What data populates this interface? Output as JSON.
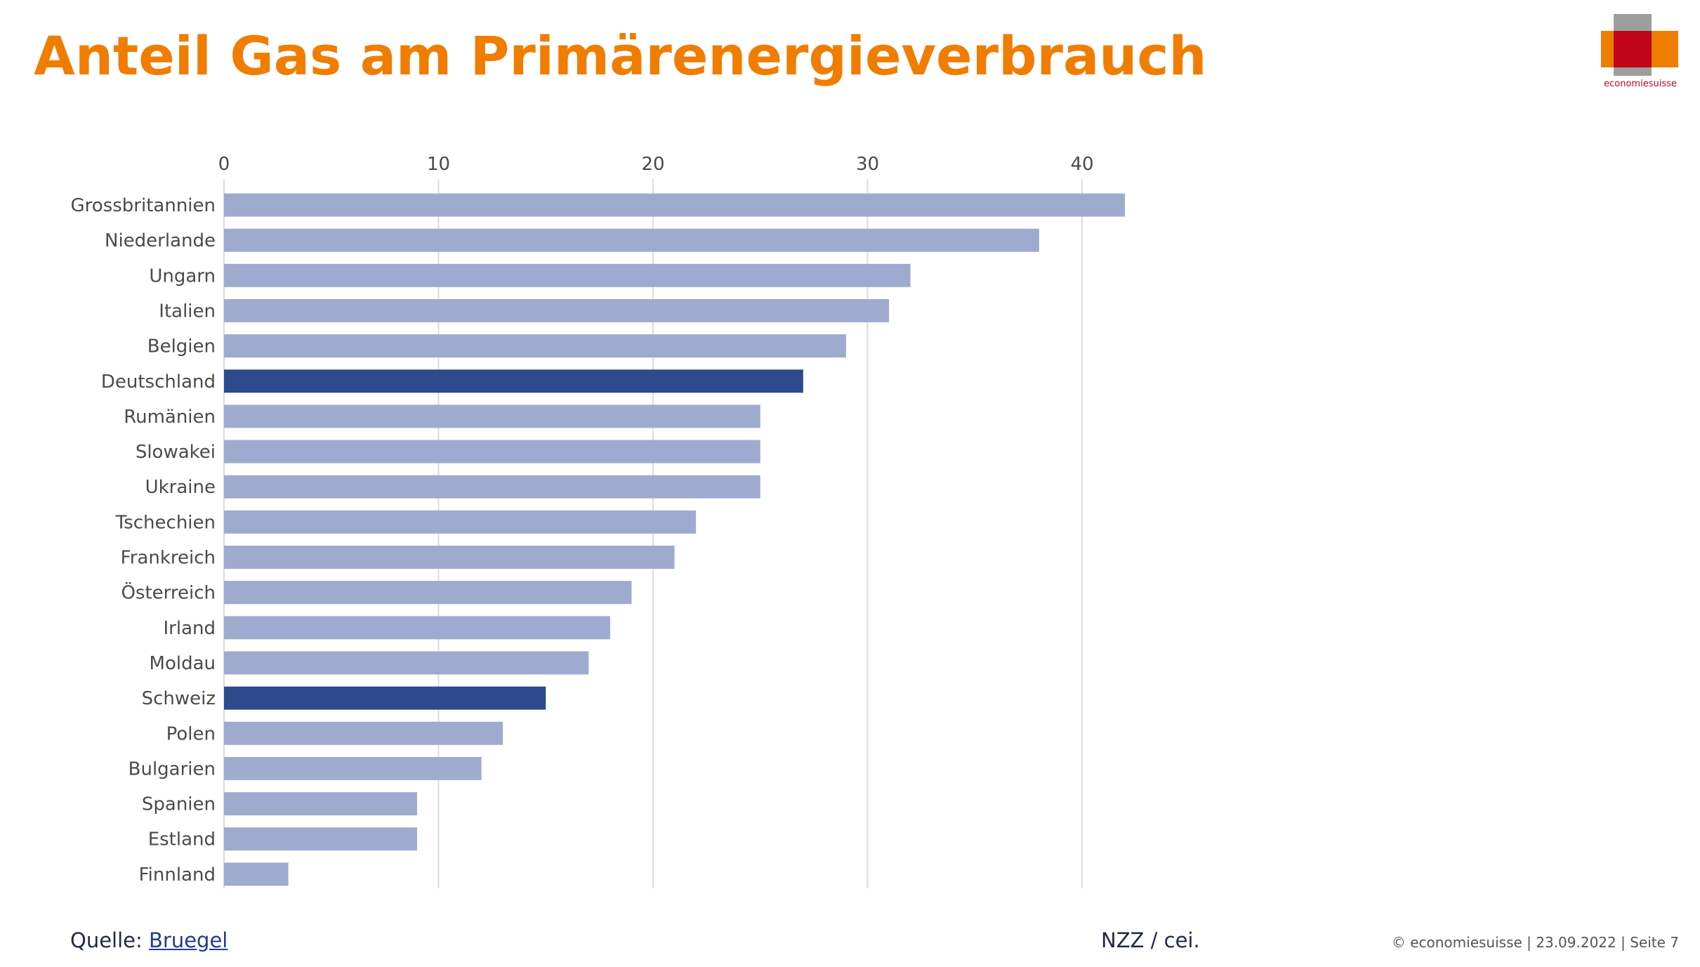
{
  "slide": {
    "title": "Anteil Gas am Primärenergieverbrauch"
  },
  "logo": {
    "text": "economiesuisse",
    "colors": {
      "grey": "#9e9e9e",
      "orange": "#ef7d00",
      "red": "#c0061b"
    }
  },
  "footer": {
    "source_label": "Quelle:",
    "source_link": "Bruegel",
    "credit": "NZZ / cei.",
    "copyright": "© economiesuisse | 23.09.2022 | Seite 7"
  },
  "chart_data": {
    "type": "bar",
    "orientation": "horizontal",
    "title": "",
    "xlabel": "",
    "ylabel": "",
    "xlim": [
      0,
      45
    ],
    "x_ticks": [
      0,
      10,
      20,
      30,
      40
    ],
    "grid": "vertical",
    "categories": [
      "Grossbritannien",
      "Niederlande",
      "Ungarn",
      "Italien",
      "Belgien",
      "Deutschland",
      "Rumänien",
      "Slowakei",
      "Ukraine",
      "Tschechien",
      "Frankreich",
      "Österreich",
      "Irland",
      "Moldau",
      "Schweiz",
      "Polen",
      "Bulgarien",
      "Spanien",
      "Estland",
      "Finnland"
    ],
    "values": [
      42,
      38,
      32,
      31,
      29,
      27,
      25,
      25,
      25,
      22,
      21,
      19,
      18,
      17,
      15,
      13,
      12,
      9,
      9,
      3
    ],
    "highlighted": [
      "Deutschland",
      "Schweiz"
    ],
    "colors": {
      "default": "#9eabcf",
      "highlight": "#2e4a8e",
      "grid": "#dcdcdc",
      "label": "#4a4a4a"
    }
  }
}
